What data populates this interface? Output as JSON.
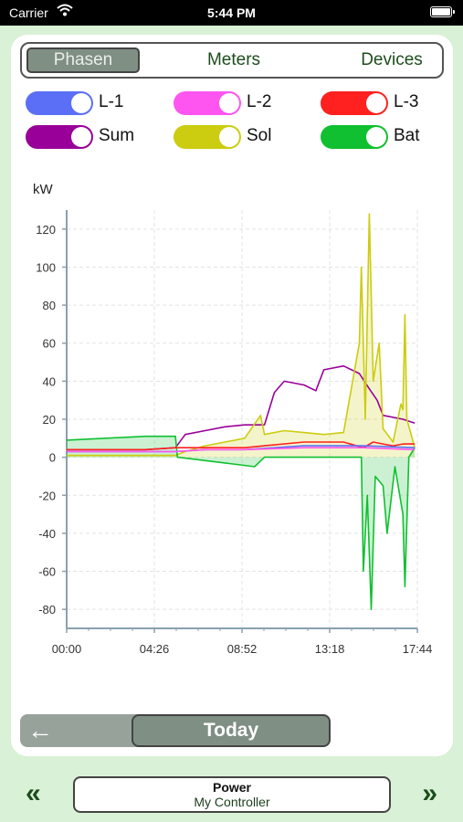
{
  "status_bar": {
    "carrier": "Carrier",
    "time": "5:44 PM"
  },
  "tabs": [
    {
      "label": "Phasen",
      "active": true
    },
    {
      "label": "Meters",
      "active": false
    },
    {
      "label": "Devices",
      "active": false
    }
  ],
  "toggles": [
    {
      "label": "L-1",
      "color": "#5a6ff5",
      "on": true
    },
    {
      "label": "L-2",
      "color": "#ff55f0",
      "on": true
    },
    {
      "label": "L-3",
      "color": "#ff2020",
      "on": true
    },
    {
      "label": "Sum",
      "color": "#990099",
      "on": true
    },
    {
      "label": "Sol",
      "color": "#cccc10",
      "on": true
    },
    {
      "label": "Bat",
      "color": "#10c030",
      "on": true
    }
  ],
  "chart": {
    "unit_label": "kW",
    "y_ticks": [
      "120",
      "100",
      "80",
      "60",
      "40",
      "20",
      "0",
      "-20",
      "-40",
      "-60",
      "-80"
    ],
    "x_ticks": [
      "00:00",
      "04:26",
      "08:52",
      "13:18",
      "17:44"
    ]
  },
  "chart_data": {
    "type": "line",
    "ylabel": "kW",
    "ylim": [
      -90,
      130
    ],
    "xlim_hours": [
      0,
      17.73
    ],
    "series": [
      {
        "name": "Sum",
        "color": "#990099",
        "points": [
          [
            0,
            4
          ],
          [
            2,
            4
          ],
          [
            4,
            4
          ],
          [
            5.5,
            5
          ],
          [
            6,
            12
          ],
          [
            7,
            14
          ],
          [
            8,
            16
          ],
          [
            9,
            17
          ],
          [
            10,
            17
          ],
          [
            10.5,
            34
          ],
          [
            11,
            40
          ],
          [
            12,
            38
          ],
          [
            12.6,
            35
          ],
          [
            13,
            46
          ],
          [
            14,
            48
          ],
          [
            14.8,
            44
          ],
          [
            15.3,
            36
          ],
          [
            15.7,
            30
          ],
          [
            16,
            22
          ],
          [
            17,
            20
          ],
          [
            17.6,
            18
          ]
        ]
      },
      {
        "name": "Sol",
        "color": "#cccc10",
        "points": [
          [
            0,
            1
          ],
          [
            5.5,
            1
          ],
          [
            6,
            3
          ],
          [
            7,
            6
          ],
          [
            8,
            8
          ],
          [
            9,
            10
          ],
          [
            9.8,
            22
          ],
          [
            10,
            12
          ],
          [
            11,
            14
          ],
          [
            12,
            13
          ],
          [
            13,
            12
          ],
          [
            14,
            13
          ],
          [
            14.8,
            60
          ],
          [
            14.9,
            100
          ],
          [
            15.1,
            20
          ],
          [
            15.3,
            128
          ],
          [
            15.5,
            40
          ],
          [
            15.8,
            60
          ],
          [
            16,
            15
          ],
          [
            16.5,
            8
          ],
          [
            16.9,
            28
          ],
          [
            17.0,
            25
          ],
          [
            17.1,
            75
          ],
          [
            17.2,
            20
          ],
          [
            17.6,
            5
          ]
        ]
      },
      {
        "name": "Bat",
        "color": "#10c030",
        "points": [
          [
            0,
            9
          ],
          [
            2,
            10
          ],
          [
            4,
            11
          ],
          [
            5.5,
            11
          ],
          [
            5.6,
            0
          ],
          [
            8,
            -3
          ],
          [
            9.5,
            -5
          ],
          [
            10,
            0
          ],
          [
            11,
            0
          ],
          [
            13,
            0
          ],
          [
            14.9,
            0
          ],
          [
            15,
            -60
          ],
          [
            15.2,
            -20
          ],
          [
            15.4,
            -80
          ],
          [
            15.6,
            -10
          ],
          [
            16,
            -15
          ],
          [
            16.2,
            -40
          ],
          [
            16.6,
            -5
          ],
          [
            17,
            -30
          ],
          [
            17.1,
            -68
          ],
          [
            17.3,
            0
          ],
          [
            17.6,
            5
          ]
        ]
      },
      {
        "name": "L-3",
        "color": "#ff2020",
        "points": [
          [
            0,
            4
          ],
          [
            2,
            4
          ],
          [
            4,
            4
          ],
          [
            5.5,
            5
          ],
          [
            7,
            5
          ],
          [
            9,
            5
          ],
          [
            10,
            6
          ],
          [
            12,
            8
          ],
          [
            14,
            8
          ],
          [
            15,
            5
          ],
          [
            15.5,
            8
          ],
          [
            16,
            7
          ],
          [
            16.5,
            6
          ],
          [
            17,
            7
          ],
          [
            17.6,
            7
          ]
        ]
      },
      {
        "name": "L-1",
        "color": "#5a6ff5",
        "points": [
          [
            0,
            3
          ],
          [
            5.5,
            3
          ],
          [
            7,
            4
          ],
          [
            9,
            4
          ],
          [
            12,
            6
          ],
          [
            15,
            6
          ],
          [
            17.6,
            5
          ]
        ]
      },
      {
        "name": "L-2",
        "color": "#ff55f0",
        "points": [
          [
            0,
            3
          ],
          [
            5.5,
            3
          ],
          [
            7,
            4
          ],
          [
            9,
            4
          ],
          [
            12,
            5
          ],
          [
            15,
            5
          ],
          [
            17.6,
            4
          ]
        ]
      }
    ]
  },
  "nav": {
    "back_icon": "←",
    "today_label": "Today"
  },
  "bottom": {
    "prev_icon": "«",
    "next_icon": "»",
    "title": "Power",
    "subtitle": "My Controller"
  }
}
